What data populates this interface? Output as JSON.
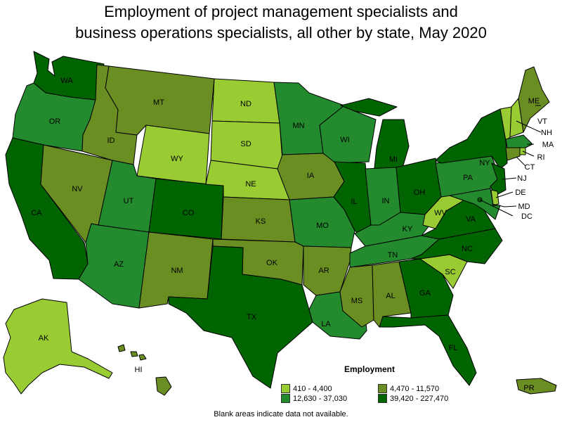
{
  "title": {
    "line1": "Employment of project management specialists and",
    "line2": "business operations specialists, all other by state, May 2020"
  },
  "colors": {
    "c1": "#99cc33",
    "c2": "#6b8e23",
    "c3": "#238b2e",
    "c4": "#006400"
  },
  "legend": {
    "title": "Employment",
    "items": [
      {
        "label": "410 - 4,400",
        "color": "#99cc33"
      },
      {
        "label": "4,470 - 11,570",
        "color": "#6b8e23"
      },
      {
        "label": "12,630 - 37,030",
        "color": "#238b2e"
      },
      {
        "label": "39,420 - 227,470",
        "color": "#006400"
      }
    ]
  },
  "note": "Blank areas indicate data not available.",
  "states": {
    "WA": {
      "label": "WA",
      "class": 4
    },
    "OR": {
      "label": "OR",
      "class": 3
    },
    "CA": {
      "label": "CA",
      "class": 4
    },
    "NV": {
      "label": "NV",
      "class": 2
    },
    "ID": {
      "label": "ID",
      "class": 2
    },
    "MT": {
      "label": "MT",
      "class": 2
    },
    "WY": {
      "label": "WY",
      "class": 1
    },
    "UT": {
      "label": "UT",
      "class": 3
    },
    "AZ": {
      "label": "AZ",
      "class": 3
    },
    "CO": {
      "label": "CO",
      "class": 4
    },
    "NM": {
      "label": "NM",
      "class": 2
    },
    "ND": {
      "label": "ND",
      "class": 1
    },
    "SD": {
      "label": "SD",
      "class": 1
    },
    "NE": {
      "label": "NE",
      "class": 1
    },
    "KS": {
      "label": "KS",
      "class": 2
    },
    "OK": {
      "label": "OK",
      "class": 2
    },
    "TX": {
      "label": "TX",
      "class": 4
    },
    "MN": {
      "label": "MN",
      "class": 3
    },
    "IA": {
      "label": "IA",
      "class": 2
    },
    "MO": {
      "label": "MO",
      "class": 3
    },
    "AR": {
      "label": "AR",
      "class": 2
    },
    "LA": {
      "label": "LA",
      "class": 3
    },
    "WI": {
      "label": "WI",
      "class": 3
    },
    "IL": {
      "label": "IL",
      "class": 4
    },
    "MI": {
      "label": "MI",
      "class": 4
    },
    "IN": {
      "label": "IN",
      "class": 3
    },
    "OH": {
      "label": "OH",
      "class": 4
    },
    "KY": {
      "label": "KY",
      "class": 3
    },
    "TN": {
      "label": "TN",
      "class": 3
    },
    "MS": {
      "label": "MS",
      "class": 2
    },
    "AL": {
      "label": "AL",
      "class": 2
    },
    "GA": {
      "label": "GA",
      "class": 4
    },
    "FL": {
      "label": "FL",
      "class": 4
    },
    "SC": {
      "label": "SC",
      "class": 1
    },
    "NC": {
      "label": "NC",
      "class": 4
    },
    "VA": {
      "label": "VA",
      "class": 4
    },
    "WV": {
      "label": "WV",
      "class": 1
    },
    "PA": {
      "label": "PA",
      "class": 3
    },
    "NY": {
      "label": "NY",
      "class": 4
    },
    "VT": {
      "label": "VT",
      "class": 1
    },
    "NH": {
      "label": "NH",
      "class": 1
    },
    "ME": {
      "label": "ME",
      "class": 2
    },
    "MA": {
      "label": "MA",
      "class": 3
    },
    "RI": {
      "label": "RI",
      "class": 1
    },
    "CT": {
      "label": "CT",
      "class": 2
    },
    "NJ": {
      "label": "NJ",
      "class": 4
    },
    "DE": {
      "label": "DE",
      "class": 1
    },
    "MD": {
      "label": "MD",
      "class": 3
    },
    "DC": {
      "label": "DC",
      "class": 4
    },
    "AK": {
      "label": "AK",
      "class": 1
    },
    "HI": {
      "label": "HI",
      "class": 2
    },
    "PR": {
      "label": "PR",
      "class": 2
    }
  }
}
